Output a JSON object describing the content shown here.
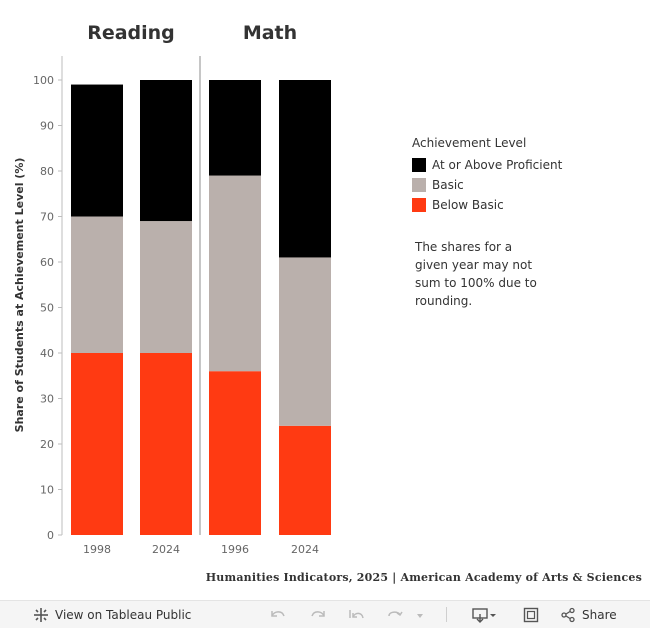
{
  "chart_data": {
    "type": "bar",
    "stacked": true,
    "ylabel": "Share of Students at Achievement Level (%)",
    "ylim": [
      0,
      100
    ],
    "yticks": [
      0,
      10,
      20,
      30,
      40,
      50,
      60,
      70,
      80,
      90,
      100
    ],
    "panels": [
      {
        "title": "Reading",
        "categories": [
          "1998",
          "2024"
        ]
      },
      {
        "title": "Math",
        "categories": [
          "1996",
          "2024"
        ]
      }
    ],
    "series": [
      {
        "name": "Below Basic",
        "color": "#ff3a12",
        "values": [
          40,
          40,
          36,
          24
        ]
      },
      {
        "name": "Basic",
        "color": "#bab0ac",
        "values": [
          30,
          29,
          43,
          37
        ]
      },
      {
        "name": "At or Above Proficient",
        "color": "#000000",
        "values": [
          29,
          31,
          21,
          39
        ]
      }
    ],
    "legend": {
      "title": "Achievement Level",
      "position": "right",
      "items": [
        {
          "label": "At or Above Proficient",
          "color": "#000000"
        },
        {
          "label": "Basic",
          "color": "#bab0ac"
        },
        {
          "label": "Below Basic",
          "color": "#ff3a12"
        }
      ]
    },
    "note": "The shares for a given year may not sum to 100% due to rounding.",
    "grid": false
  },
  "credit": "Humanities Indicators, 2025 | American Academy of Arts & Sciences",
  "toolbar": {
    "view_label": "View on Tableau Public",
    "share_label": "Share",
    "icons": [
      "tableau-logo-icon",
      "undo-icon",
      "redo-icon",
      "revert-icon",
      "refresh-icon",
      "pause-dropdown-icon",
      "download-icon",
      "fullscreen-icon",
      "share-icon"
    ]
  }
}
